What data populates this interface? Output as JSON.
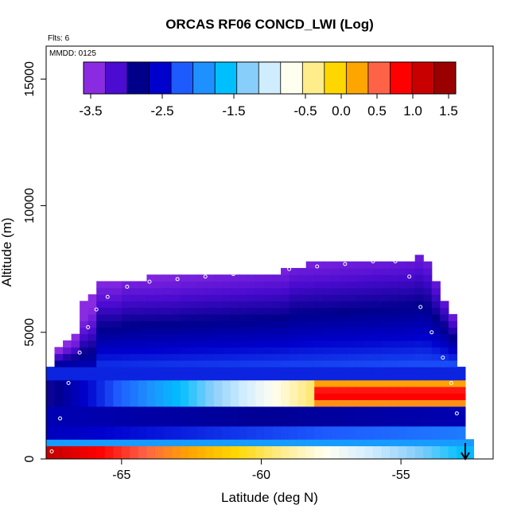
{
  "chart_data": {
    "type": "heatmap",
    "title": "ORCAS RF06 CONCD_LWI (Log)",
    "annotations": {
      "flights": "Flts: 6",
      "date": "MMDD: 0125"
    },
    "xlabel": "Latitude (deg N)",
    "ylabel": "Altitude (m)",
    "xlim": [
      -67.7,
      -51.7
    ],
    "ylim": [
      0,
      16300
    ],
    "x_ticks": [
      -65,
      -60,
      -55
    ],
    "x_tick_labels": [
      "-65",
      "-60",
      "-55"
    ],
    "y_ticks": [
      0,
      5000,
      10000,
      15000
    ],
    "y_tick_labels": [
      "0",
      "5000",
      "10000",
      "15000"
    ],
    "grid": false,
    "colorbar": {
      "placement": "top-inset",
      "range": [
        -3.6,
        1.6
      ],
      "tick_values": [
        -3.5,
        -2.5,
        -1.5,
        -0.5,
        0.0,
        0.5,
        1.0,
        1.5
      ],
      "tick_labels": [
        "-3.5",
        "-2.5",
        "-1.5",
        "-0.5",
        "0.0",
        "0.5",
        "1.0",
        "1.5"
      ],
      "colors": [
        "#8a2be2",
        "#4b0bd0",
        "#00008b",
        "#0000cd",
        "#1e5bff",
        "#1e90ff",
        "#00bfff",
        "#87cefa",
        "#d0ecff",
        "#fffff0",
        "#ffec8b",
        "#ffd700",
        "#ffa500",
        "#ff6347",
        "#ff0000",
        "#c80000",
        "#9b0000"
      ]
    },
    "colors": {
      "upper_cloud_top": "#8a2be2",
      "upper_cloud_body": "#0000cd",
      "layer_band": "#00bfff",
      "layer_core": "#fffacd",
      "layer_east": "#ff0000",
      "surface": "#c80000",
      "marker": "#ffffff",
      "arrow": "#000000"
    },
    "regions": [
      {
        "name": "upper layer",
        "x_range": [
          -67.7,
          -53.6
        ],
        "altitude_top": [
          3600,
          7000,
          7700,
          7900
        ],
        "altitude_bottom": 3600,
        "value_range": [
          -3.5,
          -2.3
        ]
      },
      {
        "name": "cloud layer",
        "x_range": [
          -67.7,
          -52.9
        ],
        "altitude_range": [
          1900,
          3100
        ],
        "value_range": [
          -3.0,
          1.3
        ]
      },
      {
        "name": "lower layer",
        "x_range": [
          -67.7,
          -52.9
        ],
        "altitude_range": [
          600,
          1900
        ],
        "value_range": [
          -3.0,
          -1.8
        ]
      },
      {
        "name": "near-surface",
        "x_range": [
          -67.7,
          -52.7
        ],
        "altitude_range": [
          0,
          600
        ],
        "value_range": [
          -1.8,
          1.3
        ]
      }
    ],
    "flight_track": {
      "x": [
        -67.5,
        -67.2,
        -66.9,
        -66.5,
        -66.2,
        -65.9,
        -65.5,
        -64.8,
        -64.0,
        -63.0,
        -62.0,
        -61.0,
        -60.0,
        -59.0,
        -58.0,
        -57.0,
        -56.0,
        -55.2,
        -54.7,
        -54.3,
        -53.9,
        -53.5,
        -53.2,
        -53.0
      ],
      "y": [
        300,
        1600,
        3000,
        4200,
        5200,
        5900,
        6400,
        6800,
        7000,
        7100,
        7200,
        7300,
        7400,
        7500,
        7600,
        7700,
        7800,
        7800,
        7200,
        6000,
        5000,
        4000,
        3000,
        1800
      ]
    }
  }
}
